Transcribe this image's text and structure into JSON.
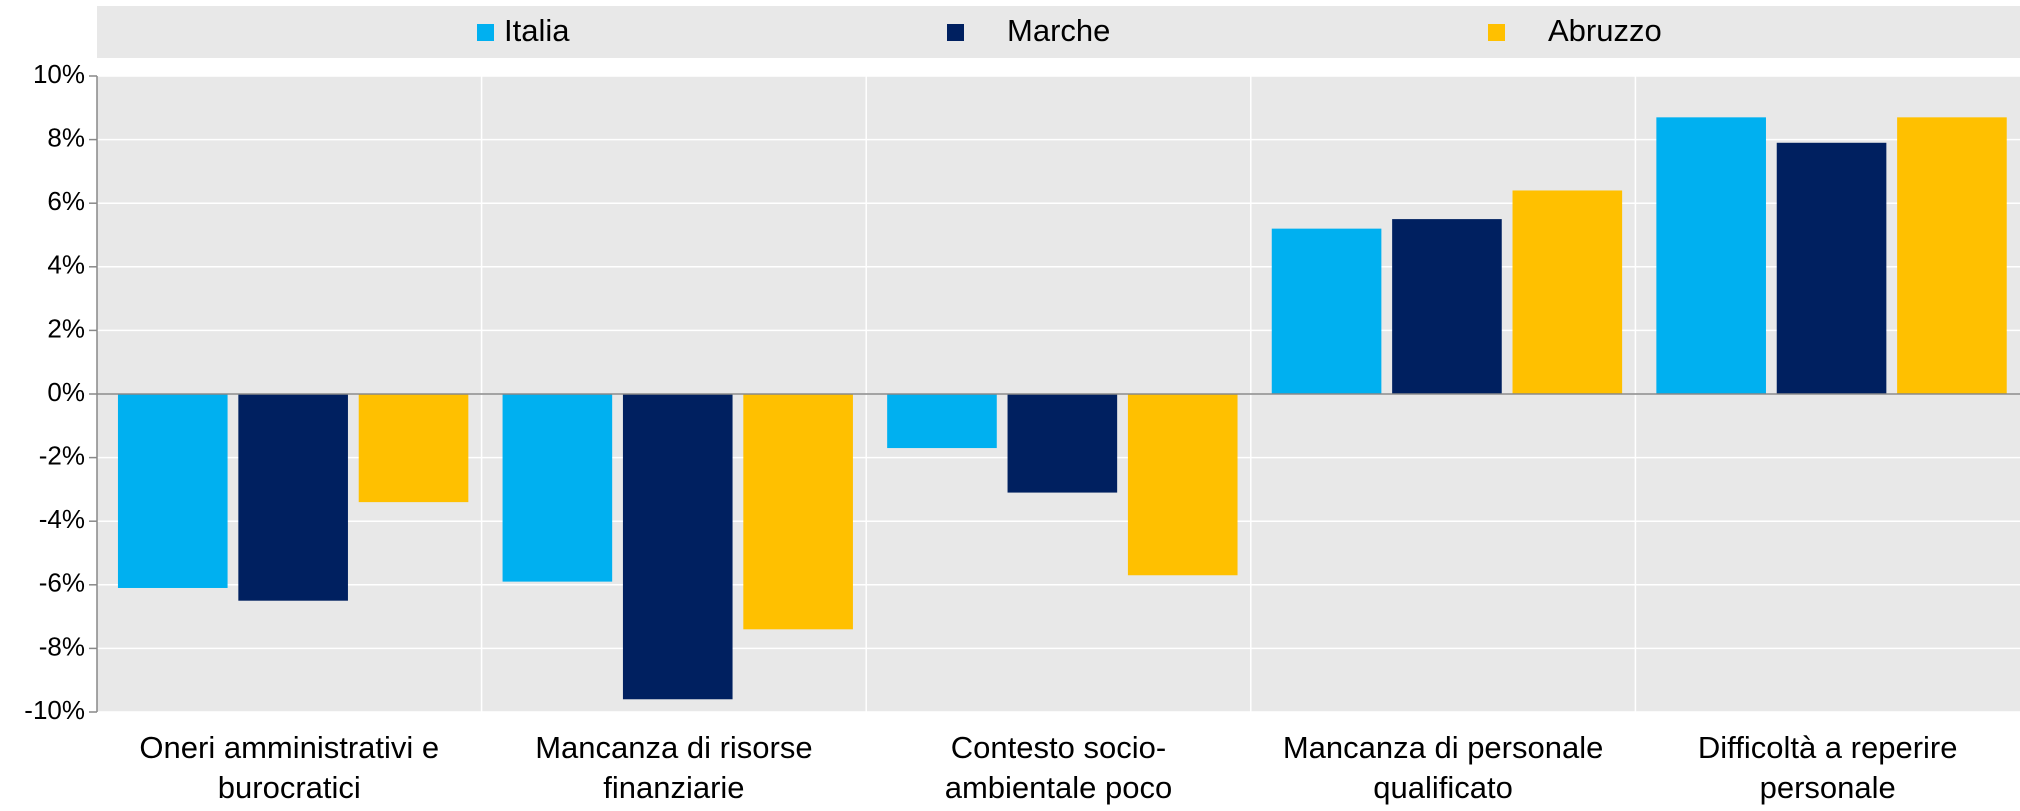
{
  "chart_data": {
    "type": "bar",
    "categories": [
      "Oneri amministrativi e burocratici",
      "Mancanza di risorse finanziarie",
      "Contesto socio-ambientale poco favorevole",
      "Mancanza di personale qualificato",
      "Difficoltà a reperire personale"
    ],
    "series": [
      {
        "name": "Italia",
        "color": "#00b0f0",
        "values": [
          -6.1,
          -5.9,
          -1.7,
          5.2,
          8.7
        ]
      },
      {
        "name": "Marche",
        "color": "#002060",
        "values": [
          -6.5,
          -9.6,
          -3.1,
          5.5,
          7.9
        ]
      },
      {
        "name": "Abruzzo",
        "color": "#ffc000",
        "values": [
          -3.4,
          -7.4,
          -5.7,
          6.4,
          8.7
        ]
      }
    ],
    "ylim": [
      -10,
      10
    ],
    "yticks": [
      {
        "value": -10,
        "label": "-10%"
      },
      {
        "value": -8,
        "label": "-8%"
      },
      {
        "value": -6,
        "label": "-6%"
      },
      {
        "value": -4,
        "label": "-4%"
      },
      {
        "value": -2,
        "label": "-2%"
      },
      {
        "value": 0,
        "label": "0%"
      },
      {
        "value": 2,
        "label": "2%"
      },
      {
        "value": 4,
        "label": "4%"
      },
      {
        "value": 6,
        "label": "6%"
      },
      {
        "value": 8,
        "label": "8%"
      },
      {
        "value": 10,
        "label": "10%"
      }
    ],
    "grid": true,
    "legend": "top"
  }
}
